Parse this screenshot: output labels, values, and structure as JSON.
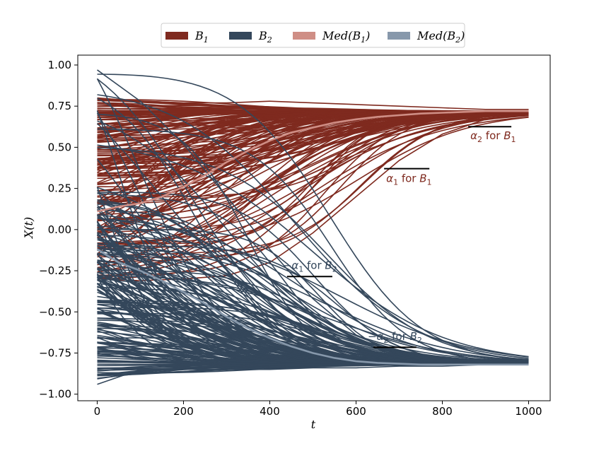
{
  "chart_data": {
    "type": "line",
    "xlabel": "t",
    "ylabel": "X(t)",
    "xlim": [
      -45,
      1050
    ],
    "ylim": [
      -1.04,
      1.06
    ],
    "xticks": [
      0,
      200,
      400,
      600,
      800,
      1000
    ],
    "xtick_labels": [
      "0",
      "200",
      "400",
      "600",
      "800",
      "1000"
    ],
    "yticks": [
      -1.0,
      -0.75,
      -0.5,
      -0.25,
      0.0,
      0.25,
      0.5,
      0.75,
      1.0
    ],
    "ytick_labels": [
      "−1.00",
      "−0.75",
      "−0.50",
      "−0.25",
      "0.00",
      "0.25",
      "0.50",
      "0.75",
      "1.00"
    ],
    "grid": false,
    "legend_position": "top-center",
    "legend": [
      {
        "main": "B",
        "sub": "1",
        "prefix": "",
        "suffix": "",
        "color": "#7f2a1f"
      },
      {
        "main": "B",
        "sub": "2",
        "prefix": "",
        "suffix": "",
        "color": "#34475b"
      },
      {
        "main": "B",
        "sub": "1",
        "prefix": "Med(",
        "suffix": ")",
        "color": "#cf8e85"
      },
      {
        "main": "B",
        "sub": "2",
        "prefix": "Med(",
        "suffix": ")",
        "color": "#8798ab"
      }
    ],
    "series": [
      {
        "group": "B1",
        "color": "#7f2a1f",
        "description": "ensemble of trajectories",
        "initial_range": [
          -0.3,
          0.82
        ],
        "final_value": 0.72,
        "example_paths": [
          {
            "x": [
              0,
              100,
              200,
              300,
              400,
              500,
              600,
              700,
              800,
              900,
              1000
            ],
            "y": [
              0.8,
              0.78,
              0.77,
              0.77,
              0.78,
              0.77,
              0.76,
              0.75,
              0.74,
              0.73,
              0.73
            ]
          },
          {
            "x": [
              0,
              100,
              200,
              300,
              400,
              500,
              600,
              700,
              800,
              900,
              1000
            ],
            "y": [
              -0.3,
              -0.31,
              -0.3,
              -0.28,
              -0.2,
              -0.02,
              0.2,
              0.42,
              0.58,
              0.67,
              0.71
            ]
          }
        ]
      },
      {
        "group": "B2",
        "color": "#34475b",
        "description": "ensemble of trajectories",
        "initial_range": [
          -0.94,
          0.97
        ],
        "final_value": -0.82,
        "example_paths": [
          {
            "x": [
              0,
              100,
              200,
              300,
              400,
              500,
              600,
              700,
              800,
              900,
              1000
            ],
            "y": [
              0.97,
              0.78,
              0.52,
              0.2,
              -0.12,
              -0.42,
              -0.64,
              -0.76,
              -0.8,
              -0.82,
              -0.82
            ]
          },
          {
            "x": [
              0,
              100,
              200,
              300,
              400,
              500,
              600,
              700,
              800,
              900,
              1000
            ],
            "y": [
              -0.94,
              -0.85,
              -0.85,
              -0.85,
              -0.85,
              -0.84,
              -0.84,
              -0.83,
              -0.83,
              -0.82,
              -0.82
            ]
          }
        ]
      },
      {
        "name": "Med(B1)",
        "color": "#cf8e85",
        "x": [
          0,
          50,
          100,
          150,
          200,
          250,
          300,
          350,
          400,
          450,
          500,
          550,
          600,
          650,
          700,
          750,
          800,
          850,
          900,
          950,
          1000
        ],
        "y": [
          0.11,
          0.14,
          0.16,
          0.2,
          0.26,
          0.33,
          0.41,
          0.48,
          0.54,
          0.59,
          0.62,
          0.65,
          0.67,
          0.685,
          0.695,
          0.705,
          0.71,
          0.715,
          0.72,
          0.72,
          0.72
        ]
      },
      {
        "name": "Med(B2)",
        "color": "#8798ab",
        "x": [
          0,
          50,
          100,
          150,
          200,
          250,
          300,
          350,
          400,
          450,
          500,
          550,
          600,
          650,
          700,
          750,
          800,
          850,
          900,
          950,
          1000
        ],
        "y": [
          -0.12,
          -0.2,
          -0.25,
          -0.31,
          -0.38,
          -0.45,
          -0.53,
          -0.6,
          -0.66,
          -0.71,
          -0.75,
          -0.78,
          -0.8,
          -0.81,
          -0.815,
          -0.82,
          -0.82,
          -0.82,
          -0.82,
          -0.82,
          -0.82
        ]
      }
    ],
    "annotations": [
      {
        "prefix": "",
        "greek": "α",
        "sub": "2",
        "mid": " for ",
        "group": "B",
        "group_sub": "1",
        "color": "#7f2a1f",
        "text_x": 865,
        "text_y": 0.55,
        "line_x": [
          860,
          960
        ],
        "line_y": 0.625
      },
      {
        "prefix": "",
        "greek": "α",
        "sub": "1",
        "mid": " for ",
        "group": "B",
        "group_sub": "1",
        "color": "#7f2a1f",
        "text_x": 670,
        "text_y": 0.29,
        "line_x": [
          665,
          770
        ],
        "line_y": 0.37
      },
      {
        "prefix": "−",
        "greek": "α",
        "sub": "1",
        "mid": " for ",
        "group": "B",
        "group_sub": "2",
        "color": "#34475b",
        "text_x": 430,
        "text_y": -0.24,
        "line_x": [
          440,
          545
        ],
        "line_y": -0.285
      },
      {
        "prefix": "−",
        "greek": "α",
        "sub": "2",
        "mid": " for ",
        "group": "B",
        "group_sub": "2",
        "color": "#34475b",
        "text_x": 627,
        "text_y": -0.67,
        "line_x": [
          640,
          740
        ],
        "line_y": -0.715
      }
    ]
  }
}
